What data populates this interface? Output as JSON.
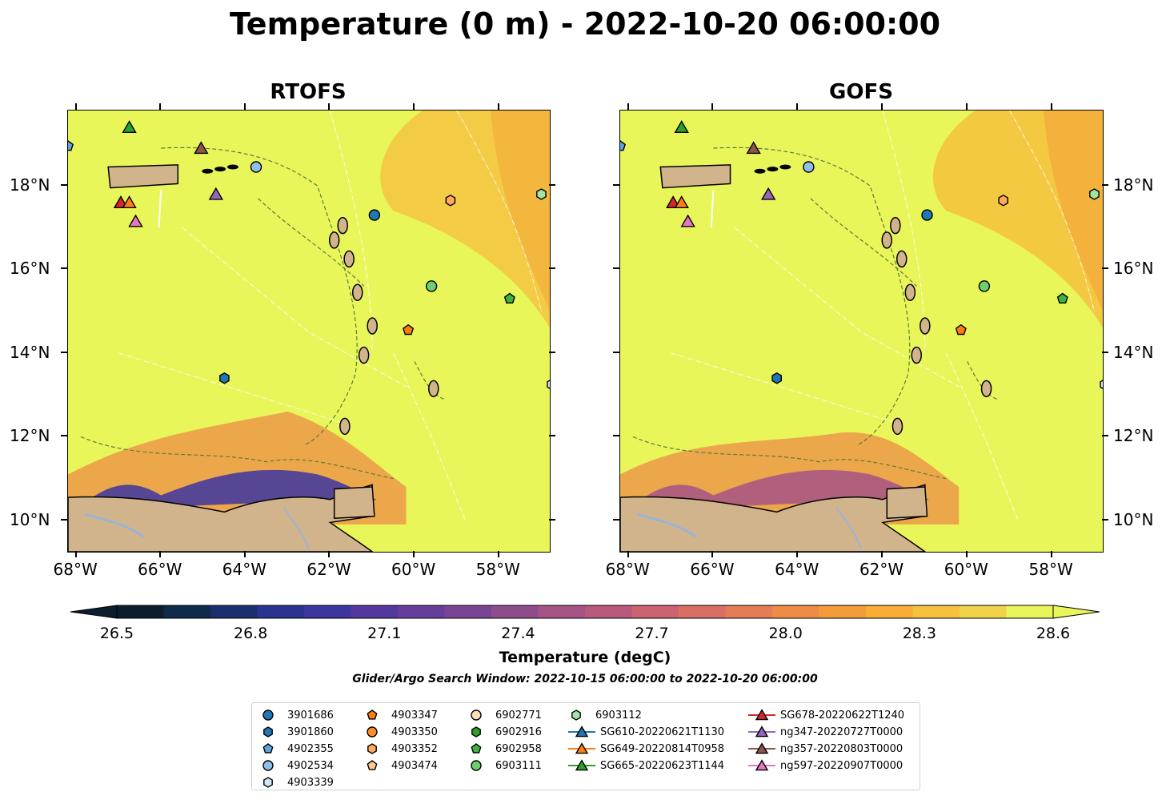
{
  "title": "Temperature (0 m) - 2022-10-20 06:00:00",
  "panels": [
    {
      "title": "RTOFS"
    },
    {
      "title": "GOFS"
    }
  ],
  "axes": {
    "lon_labels": [
      "68°W",
      "66°W",
      "64°W",
      "62°W",
      "60°W",
      "58°W"
    ],
    "lat_labels": [
      "18°N",
      "16°N",
      "14°N",
      "12°N",
      "10°N"
    ],
    "lon_range": [
      -68.2,
      -56.8
    ],
    "lat_range": [
      9.25,
      19.8
    ]
  },
  "colorbar": {
    "label": "Temperature (degC)",
    "ticks": [
      "26.5",
      "26.8",
      "27.1",
      "27.4",
      "27.7",
      "28.0",
      "28.3",
      "28.6"
    ],
    "range": [
      26.5,
      28.6
    ],
    "extend": "both",
    "colors": [
      "#0c1d2e",
      "#0f2a4a",
      "#1b2f6e",
      "#2a3390",
      "#3d35a0",
      "#52389f",
      "#663d9a",
      "#7a4494",
      "#8f4c8d",
      "#a65385",
      "#b95a7c",
      "#cb6371",
      "#d96e65",
      "#e47d56",
      "#ee8c46",
      "#f49b3a",
      "#f8ad36",
      "#f6c13e",
      "#f0d34a",
      "#e8f65a"
    ]
  },
  "search_window": "Glider/Argo Search Window: 2022-10-15 06:00:00 to 2022-10-20 06:00:00",
  "legend": [
    {
      "label": "3901686",
      "marker": "circle",
      "color": "#1f77b4"
    },
    {
      "label": "3901860",
      "marker": "hexagon",
      "color": "#1f77b4"
    },
    {
      "label": "4902355",
      "marker": "pentagon",
      "color": "#5da5da"
    },
    {
      "label": "4902534",
      "marker": "circle",
      "color": "#8fc0e8"
    },
    {
      "label": "4903339",
      "marker": "hexagon",
      "color": "#cfe8f8"
    },
    {
      "label": "4903347",
      "marker": "pentagon",
      "color": "#ff7f0e"
    },
    {
      "label": "4903350",
      "marker": "circle",
      "color": "#ff8c2a"
    },
    {
      "label": "4903352",
      "marker": "hexagon",
      "color": "#ffa860"
    },
    {
      "label": "4903474",
      "marker": "pentagon",
      "color": "#ffc98f"
    },
    {
      "label": "6902771",
      "marker": "circle",
      "color": "#ffe0bd"
    },
    {
      "label": "6902916",
      "marker": "hexagon",
      "color": "#2ca02c"
    },
    {
      "label": "6902958",
      "marker": "pentagon",
      "color": "#3fb23f"
    },
    {
      "label": "6903111",
      "marker": "circle",
      "color": "#6fcf6f"
    },
    {
      "label": "6903112",
      "marker": "hexagon",
      "color": "#a3e3a3"
    },
    {
      "label": "SG610-20220621T1130",
      "marker": "triangle",
      "color": "#1f77b4",
      "line": true
    },
    {
      "label": "SG649-20220814T0958",
      "marker": "triangle",
      "color": "#ff7f0e",
      "line": true
    },
    {
      "label": "SG665-20220623T1144",
      "marker": "triangle",
      "color": "#2ca02c",
      "line": true
    },
    {
      "label": "SG678-20220622T1240",
      "marker": "triangle",
      "color": "#d62728",
      "line": true
    },
    {
      "label": "ng347-20220727T0000",
      "marker": "triangle",
      "color": "#9467bd",
      "line": true
    },
    {
      "label": "ng357-20220803T0000",
      "marker": "triangle",
      "color": "#8c564b",
      "line": true
    },
    {
      "label": "ng597-20220907T0000",
      "marker": "triangle",
      "color": "#e377c2",
      "line": true
    }
  ],
  "observations": [
    {
      "id": "4902355",
      "lon": -68.2,
      "lat": 18.95
    },
    {
      "id": "4902534",
      "lon": -63.75,
      "lat": 18.45
    },
    {
      "id": "3901686",
      "lon": -60.95,
      "lat": 17.3
    },
    {
      "id": "4903352",
      "lon": -59.15,
      "lat": 17.65
    },
    {
      "id": "6903112",
      "lon": -57.0,
      "lat": 17.8
    },
    {
      "id": "6903111",
      "lon": -59.6,
      "lat": 15.6
    },
    {
      "id": "6902958",
      "lon": -57.75,
      "lat": 15.3
    },
    {
      "id": "4903347",
      "lon": -60.15,
      "lat": 14.55
    },
    {
      "id": "3901860",
      "lon": -64.5,
      "lat": 13.4
    },
    {
      "id": "4903339",
      "lon": -56.75,
      "lat": 13.25
    },
    {
      "id": "SG665-20220623T1144",
      "lon": -66.75,
      "lat": 19.4
    },
    {
      "id": "ng357-20220803T0000",
      "lon": -65.05,
      "lat": 18.9
    },
    {
      "id": "ng347-20220727T0000",
      "lon": -64.7,
      "lat": 17.8
    },
    {
      "id": "SG678-20220622T1240",
      "lon": -66.95,
      "lat": 17.6
    },
    {
      "id": "SG649-20220814T0958",
      "lon": -66.75,
      "lat": 17.6
    },
    {
      "id": "ng597-20220907T0000",
      "lon": -66.6,
      "lat": 17.15
    }
  ]
}
